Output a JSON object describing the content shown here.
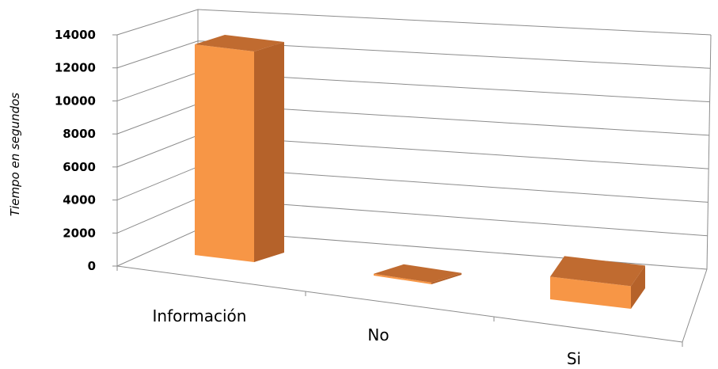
{
  "chart_data": {
    "type": "bar",
    "style": "3d-column",
    "categories": [
      "Información",
      "No",
      "Si"
    ],
    "values": [
      12100,
      100,
      1300
    ],
    "ylabel": "Tiempo en segundos",
    "xlabel": "",
    "ylim": [
      0,
      14000
    ],
    "yticks": [
      "0",
      "2000",
      "4000",
      "6000",
      "8000",
      "10000",
      "12000",
      "14000"
    ],
    "grid": true,
    "legend": "none",
    "colors": {
      "front": "#f79646",
      "side": "#b5622a",
      "top": "#c06b30",
      "grid": "#8c8c8c"
    }
  }
}
